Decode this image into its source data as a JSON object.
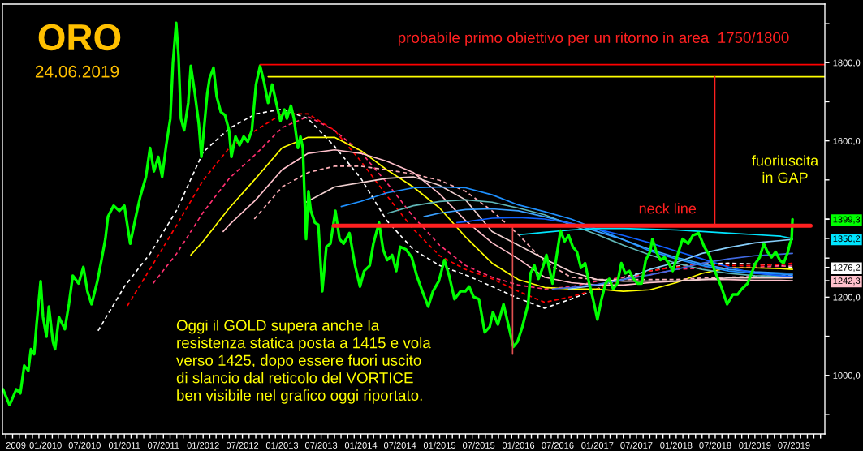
{
  "chart_data": {
    "type": "line",
    "title": "ORO",
    "subtitle": "24.06.2019",
    "annotations": [
      "probabile primo obiettivo per un ritorno in area  1750/1800",
      "fuoriuscita\nin GAP",
      "Oggi il GOLD supera anche la\nresistenza statica posta a 1415 e vola\nverso 1425, dopo essere fuori uscito\ndi slancio dal reticolo del VORTICE\nben visibile nel grafico oggi riportato."
    ],
    "xlim": [
      "2009-06-15",
      "2019-11-21"
    ],
    "ylim": [
      850,
      1950
    ],
    "yticks": [
      {
        "value": 900,
        "label": null
      },
      {
        "value": 1000,
        "label": "1000,0"
      },
      {
        "value": 1100,
        "label": null
      },
      {
        "value": 1200,
        "label": "1200,0"
      },
      {
        "value": 1300,
        "label": null
      },
      {
        "value": 1400,
        "label": null
      },
      {
        "value": 1500,
        "label": null
      },
      {
        "value": 1600,
        "label": "1600,0"
      },
      {
        "value": 1700,
        "label": null
      },
      {
        "value": 1800,
        "label": "1800,0"
      },
      {
        "value": 1900,
        "label": null
      },
      {
        "value": 1399.3,
        "label": "1399,3"
      },
      {
        "value": 1350.2,
        "label": "1350,2"
      },
      {
        "value": 1276.2,
        "label": "1276,2"
      },
      {
        "value": 1242.3,
        "label": "1242,3"
      }
    ],
    "xticks": [
      {
        "value": "2009-07-01",
        "label": "2009"
      },
      {
        "value": "2009-08-01",
        "label": null
      },
      {
        "value": "2009-09-01",
        "label": null
      },
      {
        "value": "2009-10-01",
        "label": null
      },
      {
        "value": "2009-11-01",
        "label": null
      },
      {
        "value": "2009-12-01",
        "label": null
      },
      {
        "value": "2010-01-01",
        "label": "01/2010"
      },
      {
        "value": "2010-02-01",
        "label": null
      },
      {
        "value": "2010-03-01",
        "label": null
      },
      {
        "value": "2010-04-01",
        "label": null
      },
      {
        "value": "2010-05-01",
        "label": null
      },
      {
        "value": "2010-06-01",
        "label": null
      },
      {
        "value": "2010-07-01",
        "label": "07/2010"
      },
      {
        "value": "2010-08-01",
        "label": null
      },
      {
        "value": "2010-09-01",
        "label": null
      },
      {
        "value": "2010-10-01",
        "label": null
      },
      {
        "value": "2010-11-01",
        "label": null
      },
      {
        "value": "2010-12-01",
        "label": null
      },
      {
        "value": "2011-01-01",
        "label": "01/2011"
      },
      {
        "value": "2011-02-01",
        "label": null
      },
      {
        "value": "2011-03-01",
        "label": null
      },
      {
        "value": "2011-04-01",
        "label": null
      },
      {
        "value": "2011-05-01",
        "label": null
      },
      {
        "value": "2011-06-01",
        "label": null
      },
      {
        "value": "2011-07-01",
        "label": "07/2011"
      },
      {
        "value": "2011-08-01",
        "label": null
      },
      {
        "value": "2011-09-01",
        "label": null
      },
      {
        "value": "2011-10-01",
        "label": null
      },
      {
        "value": "2011-11-01",
        "label": null
      },
      {
        "value": "2011-12-01",
        "label": null
      },
      {
        "value": "2012-01-01",
        "label": "01/2012"
      },
      {
        "value": "2012-02-01",
        "label": null
      },
      {
        "value": "2012-03-01",
        "label": null
      },
      {
        "value": "2012-04-01",
        "label": null
      },
      {
        "value": "2012-05-01",
        "label": null
      },
      {
        "value": "2012-06-01",
        "label": null
      },
      {
        "value": "2012-07-01",
        "label": "07/2012"
      },
      {
        "value": "2012-08-01",
        "label": null
      },
      {
        "value": "2012-09-01",
        "label": null
      },
      {
        "value": "2012-10-01",
        "label": null
      },
      {
        "value": "2012-11-01",
        "label": null
      },
      {
        "value": "2012-12-01",
        "label": null
      },
      {
        "value": "2013-01-01",
        "label": "01/2013"
      },
      {
        "value": "2013-02-01",
        "label": null
      },
      {
        "value": "2013-03-01",
        "label": null
      },
      {
        "value": "2013-04-01",
        "label": null
      },
      {
        "value": "2013-05-01",
        "label": null
      },
      {
        "value": "2013-06-01",
        "label": null
      },
      {
        "value": "2013-07-01",
        "label": "07/2013"
      },
      {
        "value": "2013-08-01",
        "label": null
      },
      {
        "value": "2013-09-01",
        "label": null
      },
      {
        "value": "2013-10-01",
        "label": null
      },
      {
        "value": "2013-11-01",
        "label": null
      },
      {
        "value": "2013-12-01",
        "label": null
      },
      {
        "value": "2014-01-01",
        "label": "01/2014"
      },
      {
        "value": "2014-02-01",
        "label": null
      },
      {
        "value": "2014-03-01",
        "label": null
      },
      {
        "value": "2014-04-01",
        "label": null
      },
      {
        "value": "2014-05-01",
        "label": null
      },
      {
        "value": "2014-06-01",
        "label": null
      },
      {
        "value": "2014-07-01",
        "label": "07/2014"
      },
      {
        "value": "2014-08-01",
        "label": null
      },
      {
        "value": "2014-09-01",
        "label": null
      },
      {
        "value": "2014-10-01",
        "label": null
      },
      {
        "value": "2014-11-01",
        "label": null
      },
      {
        "value": "2014-12-01",
        "label": null
      },
      {
        "value": "2015-01-01",
        "label": "01/2015"
      },
      {
        "value": "2015-02-01",
        "label": null
      },
      {
        "value": "2015-03-01",
        "label": null
      },
      {
        "value": "2015-04-01",
        "label": null
      },
      {
        "value": "2015-05-01",
        "label": null
      },
      {
        "value": "2015-06-01",
        "label": null
      },
      {
        "value": "2015-07-01",
        "label": "07/2015"
      },
      {
        "value": "2015-08-01",
        "label": null
      },
      {
        "value": "2015-09-01",
        "label": null
      },
      {
        "value": "2015-10-01",
        "label": null
      },
      {
        "value": "2015-11-01",
        "label": null
      },
      {
        "value": "2015-12-01",
        "label": null
      },
      {
        "value": "2016-01-01",
        "label": "01/2016"
      },
      {
        "value": "2016-02-01",
        "label": null
      },
      {
        "value": "2016-03-01",
        "label": null
      },
      {
        "value": "2016-04-01",
        "label": null
      },
      {
        "value": "2016-05-01",
        "label": null
      },
      {
        "value": "2016-06-01",
        "label": null
      },
      {
        "value": "2016-07-01",
        "label": "07/2016"
      },
      {
        "value": "2016-08-01",
        "label": null
      },
      {
        "value": "2016-09-01",
        "label": null
      },
      {
        "value": "2016-10-01",
        "label": null
      },
      {
        "value": "2016-11-01",
        "label": null
      },
      {
        "value": "2016-12-01",
        "label": null
      },
      {
        "value": "2017-01-01",
        "label": "01/2017"
      },
      {
        "value": "2017-02-01",
        "label": null
      },
      {
        "value": "2017-03-01",
        "label": null
      },
      {
        "value": "2017-04-01",
        "label": null
      },
      {
        "value": "2017-05-01",
        "label": null
      },
      {
        "value": "2017-06-01",
        "label": null
      },
      {
        "value": "2017-07-01",
        "label": "07/2017"
      },
      {
        "value": "2017-08-01",
        "label": null
      },
      {
        "value": "2017-09-01",
        "label": null
      },
      {
        "value": "2017-10-01",
        "label": null
      },
      {
        "value": "2017-11-01",
        "label": null
      },
      {
        "value": "2017-12-01",
        "label": null
      },
      {
        "value": "2018-01-01",
        "label": "01/2018"
      },
      {
        "value": "2018-02-01",
        "label": null
      },
      {
        "value": "2018-03-01",
        "label": null
      },
      {
        "value": "2018-04-01",
        "label": null
      },
      {
        "value": "2018-05-01",
        "label": null
      },
      {
        "value": "2018-06-01",
        "label": null
      },
      {
        "value": "2018-07-01",
        "label": "07/2018"
      },
      {
        "value": "2018-08-01",
        "label": null
      },
      {
        "value": "2018-09-01",
        "label": null
      },
      {
        "value": "2018-10-01",
        "label": null
      },
      {
        "value": "2018-11-01",
        "label": null
      },
      {
        "value": "2018-12-01",
        "label": null
      },
      {
        "value": "2019-01-01",
        "label": "01/2019"
      },
      {
        "value": "2019-02-01",
        "label": null
      },
      {
        "value": "2019-03-01",
        "label": null
      },
      {
        "value": "2019-04-01",
        "label": null
      },
      {
        "value": "2019-05-01",
        "label": null
      },
      {
        "value": "2019-06-01",
        "label": null
      },
      {
        "value": "2019-07-01",
        "label": "07/2019"
      },
      {
        "value": "2019-08-01",
        "label": null
      },
      {
        "value": "2019-09-01",
        "label": null
      },
      {
        "value": "2019-10-01",
        "label": null
      },
      {
        "value": "2019-11-01",
        "label": null
      }
    ],
    "series": [
      {
        "color": "#ffffff",
        "line_style": "dashed",
        "x": [
          "2010-09-01",
          "2011-01-01",
          "2011-05-01",
          "2011-09-01",
          "2012-01-01",
          "2012-05-01",
          "2012-09-01",
          "2013-01-01",
          "2013-05-01",
          "2013-09-01",
          "2014-01-01",
          "2014-05-01",
          "2014-09-01",
          "2015-01-01",
          "2015-05-01",
          "2015-09-01",
          "2016-01-01",
          "2016-05-01",
          "2016-09-01",
          "2017-01-01",
          "2017-05-01",
          "2017-09-01",
          "2018-01-01",
          "2018-05-01",
          "2018-09-01",
          "2019-01-01",
          "2019-05-01",
          "2019-06-24"
        ],
        "values": [
          1114,
          1227,
          1312,
          1423,
          1571,
          1632,
          1669,
          1681,
          1657,
          1586,
          1504,
          1396,
          1322,
          1281,
          1257,
          1227,
          1197,
          1172,
          1195,
          1221,
          1251,
          1267,
          1279,
          1285,
          1287,
          1285,
          1281,
          1276.2
        ]
      },
      {
        "color": "#ff0000",
        "line_style": "dashed",
        "x": [
          "2011-01-15",
          "2011-05-01",
          "2011-09-01",
          "2012-01-01",
          "2012-05-01",
          "2012-09-01",
          "2013-01-01",
          "2013-05-01",
          "2013-09-01",
          "2014-01-01",
          "2014-05-01",
          "2014-09-01",
          "2015-01-01",
          "2015-05-01",
          "2015-09-01",
          "2016-01-01",
          "2016-05-01",
          "2016-09-01",
          "2017-01-01",
          "2017-05-01",
          "2017-09-01",
          "2018-01-01",
          "2018-05-01",
          "2018-09-01",
          "2019-01-01",
          "2019-05-01",
          "2019-06-24"
        ],
        "values": [
          1178,
          1273,
          1385,
          1499,
          1582,
          1627,
          1669,
          1669,
          1627,
          1548,
          1460,
          1374,
          1306,
          1271,
          1247,
          1215,
          1187,
          1201,
          1221,
          1245,
          1267,
          1277,
          1285,
          1281,
          1281,
          1283,
          1287
        ]
      },
      {
        "color": "#ff3070",
        "line_style": "dashed",
        "x": [
          "2011-05-14",
          "2011-09-01",
          "2012-01-01",
          "2012-05-01",
          "2012-09-01",
          "2013-01-01",
          "2013-05-01",
          "2013-09-01",
          "2014-01-01",
          "2014-05-01",
          "2014-09-01",
          "2015-01-01",
          "2015-05-01",
          "2015-09-01",
          "2016-01-01",
          "2016-05-01",
          "2016-09-01",
          "2017-01-01",
          "2017-05-01",
          "2017-09-01",
          "2018-01-01",
          "2018-05-01",
          "2018-09-01",
          "2019-01-01",
          "2019-05-01",
          "2019-06-24"
        ],
        "values": [
          1235,
          1312,
          1417,
          1504,
          1566,
          1634,
          1662,
          1627,
          1571,
          1493,
          1406,
          1333,
          1281,
          1251,
          1231,
          1221,
          1227,
          1241,
          1251,
          1257,
          1271,
          1275,
          1275,
          1277,
          1279,
          1281
        ]
      },
      {
        "color": "#ffff00",
        "line_style": "solid",
        "x": [
          "2011-11-05",
          "2012-01-01",
          "2012-05-01",
          "2012-09-01",
          "2013-01-01",
          "2013-05-01",
          "2013-09-01",
          "2014-01-01",
          "2014-05-01",
          "2014-09-01",
          "2015-01-01",
          "2015-05-01",
          "2015-09-01",
          "2016-01-01",
          "2016-05-01",
          "2016-09-01",
          "2017-01-01",
          "2017-05-01",
          "2017-09-01",
          "2018-01-01",
          "2018-05-01",
          "2018-09-01",
          "2019-01-01",
          "2019-05-01",
          "2019-06-24"
        ],
        "values": [
          1308,
          1343,
          1428,
          1504,
          1582,
          1609,
          1609,
          1575,
          1526,
          1482,
          1428,
          1354,
          1287,
          1245,
          1225,
          1221,
          1221,
          1215,
          1219,
          1237,
          1261,
          1275,
          1275,
          1273,
          1271
        ]
      },
      {
        "color": "#ffc0cb",
        "line_style": "solid",
        "x": [
          "2012-04-03",
          "2012-05-01",
          "2012-09-01",
          "2013-01-01",
          "2013-05-01",
          "2013-09-01",
          "2014-01-01",
          "2014-05-01",
          "2014-09-01",
          "2015-01-01",
          "2015-05-01",
          "2015-09-01",
          "2016-01-01",
          "2016-05-01",
          "2016-09-01",
          "2017-01-01",
          "2017-05-01",
          "2017-09-01",
          "2018-01-01",
          "2018-05-01",
          "2018-09-01",
          "2019-01-01",
          "2019-05-01",
          "2019-06-24"
        ],
        "values": [
          1368,
          1385,
          1449,
          1526,
          1568,
          1577,
          1568,
          1548,
          1519,
          1464,
          1396,
          1339,
          1298,
          1251,
          1237,
          1231,
          1231,
          1237,
          1241,
          1245,
          1245,
          1243,
          1243,
          1242.3
        ]
      },
      {
        "color": "#ffb0b8",
        "line_style": "dashed",
        "x": [
          "2012-08-25",
          "2013-01-01",
          "2013-05-01",
          "2013-09-01",
          "2014-01-01",
          "2014-05-01",
          "2014-09-01",
          "2015-01-01",
          "2015-05-01",
          "2015-09-01",
          "2016-01-01",
          "2016-05-01",
          "2016-09-01",
          "2017-01-01",
          "2017-05-01",
          "2017-09-01",
          "2018-01-01",
          "2018-05-01",
          "2018-09-01",
          "2019-01-01",
          "2019-05-01",
          "2019-06-24"
        ],
        "values": [
          1400,
          1482,
          1519,
          1535,
          1535,
          1526,
          1515,
          1499,
          1471,
          1421,
          1360,
          1291,
          1251,
          1245,
          1245,
          1245,
          1245,
          1249,
          1251,
          1253,
          1255,
          1255
        ]
      },
      {
        "color": "#f0d0d0",
        "line_style": "solid",
        "x": [
          "2013-04-22",
          "2013-09-01",
          "2014-01-01",
          "2014-05-01",
          "2014-09-01",
          "2015-01-01",
          "2015-05-01",
          "2015-09-01",
          "2016-01-01",
          "2016-05-01",
          "2016-09-01",
          "2017-01-01",
          "2017-05-01",
          "2017-09-01",
          "2018-01-01",
          "2018-05-01",
          "2018-09-01",
          "2019-01-01",
          "2019-05-01",
          "2019-06-24"
        ],
        "values": [
          1443,
          1482,
          1493,
          1504,
          1508,
          1486,
          1449,
          1368,
          1333,
          1298,
          1265,
          1245,
          1241,
          1241,
          1241,
          1245,
          1249,
          1249,
          1249,
          1249
        ]
      },
      {
        "color": "#1e90ff",
        "line_style": "solid",
        "x": [
          "2013-10-02",
          "2014-01-01",
          "2014-05-01",
          "2014-09-01",
          "2015-01-01",
          "2015-05-01",
          "2015-09-01",
          "2016-01-01",
          "2016-05-01",
          "2016-09-01",
          "2017-01-01",
          "2017-05-01",
          "2017-09-01",
          "2018-01-01",
          "2018-05-01",
          "2018-09-01",
          "2019-01-01",
          "2019-05-01",
          "2019-06-24"
        ],
        "values": [
          1432,
          1445,
          1467,
          1480,
          1482,
          1480,
          1462,
          1436,
          1419,
          1400,
          1374,
          1347,
          1318,
          1298,
          1281,
          1267,
          1261,
          1259,
          1257
        ]
      },
      {
        "color": "#60b8b8",
        "line_style": "solid",
        "x": [
          "2014-05-07",
          "2014-09-01",
          "2015-01-01",
          "2015-05-01",
          "2015-09-01",
          "2016-01-01",
          "2016-05-01",
          "2016-09-01",
          "2017-01-01",
          "2017-05-01",
          "2017-09-01",
          "2018-01-01",
          "2018-05-01",
          "2018-09-01",
          "2019-01-01",
          "2019-05-01",
          "2019-06-24"
        ],
        "values": [
          1415,
          1434,
          1445,
          1449,
          1443,
          1428,
          1411,
          1385,
          1360,
          1333,
          1308,
          1287,
          1271,
          1261,
          1255,
          1254,
          1253
        ]
      },
      {
        "color": "#3aa0ff",
        "line_style": "solid",
        "x": [
          "2014-10-20",
          "2015-01-01",
          "2015-05-01",
          "2015-09-01",
          "2016-01-01",
          "2016-05-01",
          "2016-09-01",
          "2017-01-01",
          "2017-05-01",
          "2017-09-01",
          "2018-01-01",
          "2018-05-01",
          "2018-09-01",
          "2019-01-01",
          "2019-05-01",
          "2019-06-24"
        ],
        "values": [
          1406,
          1415,
          1424,
          1426,
          1421,
          1406,
          1389,
          1368,
          1347,
          1322,
          1302,
          1285,
          1271,
          1265,
          1262,
          1261
        ]
      },
      {
        "color": "#1060ff",
        "line_style": "solid",
        "x": [
          "2015-03-22",
          "2015-05-01",
          "2015-09-01",
          "2016-01-01",
          "2016-05-01",
          "2016-09-01",
          "2017-01-01",
          "2017-05-01",
          "2017-09-01",
          "2018-01-01",
          "2018-05-01",
          "2018-09-01",
          "2019-01-01",
          "2019-05-01",
          "2019-06-24"
        ],
        "values": [
          1391,
          1393,
          1402,
          1404,
          1400,
          1389,
          1374,
          1358,
          1339,
          1318,
          1298,
          1277,
          1261,
          1255,
          1253
        ]
      },
      {
        "color": "#00e5ff",
        "line_style": "solid",
        "x": [
          "2016-01-08",
          "2016-05-01",
          "2016-09-01",
          "2017-01-01",
          "2017-05-01",
          "2017-09-01",
          "2018-01-01",
          "2018-05-01",
          "2018-09-01",
          "2019-01-01",
          "2019-05-01",
          "2019-06-24"
        ],
        "values": [
          1360,
          1366,
          1372,
          1376,
          1376,
          1374,
          1372,
          1368,
          1364,
          1360,
          1356,
          1350.2
        ]
      },
      {
        "color": "#87cefa",
        "line_style": "solid",
        "x": [
          "2016-08-21",
          "2017-01-01",
          "2017-05-01",
          "2017-09-01",
          "2018-01-01",
          "2018-05-01",
          "2018-09-01",
          "2019-01-01",
          "2019-05-01",
          "2019-06-24"
        ],
        "values": [
          1221,
          1231,
          1245,
          1271,
          1289,
          1312,
          1327,
          1339,
          1345,
          1348
        ]
      },
      {
        "color": "#4169e1",
        "line_style": "solid",
        "x": [
          "2016-06-07",
          "2016-09-01",
          "2017-01-01",
          "2017-05-01",
          "2017-09-01",
          "2018-01-01",
          "2018-05-01",
          "2018-09-01",
          "2019-01-01",
          "2019-05-01",
          "2019-06-24"
        ],
        "values": [
          1221,
          1225,
          1233,
          1245,
          1257,
          1271,
          1287,
          1298,
          1306,
          1310,
          1312
        ]
      },
      {
        "color": "#00ff00",
        "line_style": "solid",
        "x": [
          "2009-06-18",
          "2009-07-18",
          "2009-08-18",
          "2009-09-06",
          "2009-09-24",
          "2009-10-13",
          "2009-10-25",
          "2009-11-09",
          "2009-11-20",
          "2009-12-09",
          "2009-12-20",
          "2010-01-05",
          "2010-01-16",
          "2010-02-04",
          "2010-02-14",
          "2010-03-04",
          "2010-03-31",
          "2010-04-19",
          "2010-05-07",
          "2010-06-03",
          "2010-06-25",
          "2010-07-14",
          "2010-08-02",
          "2010-08-29",
          "2010-09-17",
          "2010-10-05",
          "2010-10-17",
          "2010-11-12",
          "2010-12-09",
          "2011-01-01",
          "2011-01-28",
          "2011-02-23",
          "2011-03-15",
          "2011-04-11",
          "2011-04-30",
          "2011-05-18",
          "2011-06-07",
          "2011-06-25",
          "2011-07-14",
          "2011-08-02",
          "2011-08-14",
          "2011-08-29",
          "2011-09-09",
          "2011-09-20",
          "2011-10-05",
          "2011-10-24",
          "2011-11-05",
          "2011-11-24",
          "2011-12-12",
          "2011-12-24",
          "2012-01-20",
          "2012-01-31",
          "2012-02-18",
          "2012-03-04",
          "2012-03-23",
          "2012-04-11",
          "2012-04-30",
          "2012-05-11",
          "2012-05-30",
          "2012-06-18",
          "2012-07-07",
          "2012-07-26",
          "2012-08-14",
          "2012-09-02",
          "2012-09-21",
          "2012-10-09",
          "2012-10-28",
          "2012-11-16",
          "2012-12-05",
          "2012-12-24",
          "2013-01-12",
          "2013-01-23",
          "2013-02-11",
          "2013-02-25",
          "2013-03-15",
          "2013-03-27",
          "2013-04-07",
          "2013-04-22",
          "2013-05-03",
          "2013-05-14",
          "2013-06-02",
          "2013-06-18",
          "2013-07-06",
          "2013-07-25",
          "2013-08-13",
          "2013-09-05",
          "2013-09-24",
          "2013-10-13",
          "2013-11-09",
          "2013-12-05",
          "2013-12-28",
          "2014-01-16",
          "2014-02-11",
          "2014-02-28",
          "2014-03-26",
          "2014-04-14",
          "2014-05-03",
          "2014-05-26",
          "2014-06-14",
          "2014-07-02",
          "2014-07-29",
          "2014-08-25",
          "2014-09-17",
          "2014-10-13",
          "2014-11-09",
          "2014-12-01",
          "2014-12-28",
          "2015-01-23",
          "2015-02-14",
          "2015-03-11",
          "2015-04-07",
          "2015-04-30",
          "2015-05-18",
          "2015-06-07",
          "2015-07-02",
          "2015-07-29",
          "2015-08-21",
          "2015-09-05",
          "2015-09-28",
          "2015-10-24",
          "2015-11-12",
          "2015-12-09",
          "2015-12-28",
          "2016-01-19",
          "2016-02-15",
          "2016-02-26",
          "2016-03-15",
          "2016-04-03",
          "2016-04-22",
          "2016-05-10",
          "2016-06-07",
          "2016-06-25",
          "2016-07-14",
          "2016-08-02",
          "2016-08-21",
          "2016-09-09",
          "2016-09-28",
          "2016-10-17",
          "2016-11-05",
          "2016-11-24",
          "2016-12-12",
          "2017-01-01",
          "2017-01-20",
          "2017-02-08",
          "2017-02-25",
          "2017-03-15",
          "2017-04-03",
          "2017-04-22",
          "2017-05-10",
          "2017-05-29",
          "2017-06-17",
          "2017-07-06",
          "2017-07-25",
          "2017-08-13",
          "2017-09-02",
          "2017-09-13",
          "2017-10-01",
          "2017-10-20",
          "2017-11-08",
          "2017-11-27",
          "2017-12-16",
          "2018-01-04",
          "2018-01-31",
          "2018-02-26",
          "2018-03-19",
          "2018-04-15",
          "2018-05-11",
          "2018-06-03",
          "2018-06-29",
          "2018-07-29",
          "2018-08-25",
          "2018-09-21",
          "2018-10-13",
          "2018-11-01",
          "2018-11-28",
          "2018-12-16",
          "2019-01-04",
          "2019-01-23",
          "2019-02-11",
          "2019-02-28",
          "2019-03-19",
          "2019-04-07",
          "2019-04-26",
          "2019-05-14",
          "2019-06-03",
          "2019-06-12",
          "2019-06-20",
          "2019-06-24"
        ],
        "values": [
          964,
          924,
          964,
          954,
          1025,
          1012,
          1067,
          1054,
          1130,
          1241,
          1149,
          1099,
          1176,
          1086,
          1067,
          1149,
          1118,
          1182,
          1255,
          1235,
          1277,
          1215,
          1182,
          1241,
          1295,
          1349,
          1406,
          1434,
          1421,
          1434,
          1337,
          1406,
          1456,
          1508,
          1582,
          1522,
          1559,
          1508,
          1589,
          1657,
          1799,
          1902,
          1816,
          1657,
          1627,
          1697,
          1792,
          1720,
          1643,
          1559,
          1720,
          1760,
          1787,
          1713,
          1674,
          1666,
          1627,
          1559,
          1611,
          1589,
          1611,
          1598,
          1627,
          1744,
          1792,
          1751,
          1697,
          1744,
          1697,
          1651,
          1680,
          1657,
          1690,
          1657,
          1582,
          1611,
          1582,
          1349,
          1471,
          1421,
          1391,
          1385,
          1215,
          1329,
          1337,
          1421,
          1349,
          1337,
          1364,
          1281,
          1227,
          1267,
          1281,
          1337,
          1391,
          1322,
          1295,
          1308,
          1267,
          1329,
          1322,
          1302,
          1255,
          1215,
          1176,
          1215,
          1241,
          1295,
          1255,
          1195,
          1215,
          1215,
          1227,
          1201,
          1195,
          1110,
          1124,
          1162,
          1130,
          1182,
          1137,
          1073,
          1086,
          1124,
          1182,
          1261,
          1281,
          1247,
          1275,
          1308,
          1235,
          1302,
          1370,
          1343,
          1358,
          1329,
          1316,
          1275,
          1287,
          1235,
          1195,
          1143,
          1195,
          1235,
          1247,
          1221,
          1235,
          1287,
          1261,
          1267,
          1247,
          1235,
          1235,
          1295,
          1316,
          1349,
          1316,
          1295,
          1302,
          1287,
          1267,
          1302,
          1349,
          1337,
          1358,
          1364,
          1329,
          1308,
          1267,
          1227,
          1182,
          1207,
          1207,
          1221,
          1235,
          1261,
          1287,
          1302,
          1337,
          1316,
          1302,
          1316,
          1295,
          1287,
          1316,
          1337,
          1348,
          1399.3
        ]
      },
      {
        "color": "#ff0000",
        "line_style": "solid",
        "x": [
          "2012-09-21",
          "2019-11-21"
        ],
        "values": [
          1795,
          1795
        ]
      },
      {
        "color": "#ffff00",
        "line_style": "solid",
        "x": [
          "2012-10-28",
          "2019-11-21"
        ],
        "values": [
          1764,
          1764
        ]
      },
      {
        "color": "#e05050",
        "line_style": "solid",
        "x": [
          "2015-12-05",
          "2015-12-05"
        ],
        "values": [
          1383,
          1054
        ]
      },
      {
        "color": "#ff2020",
        "line_style": "solid",
        "x": [
          "2018-06-29",
          "2018-06-29"
        ],
        "values": [
          1383,
          1764
        ]
      },
      {
        "name": "neck line",
        "color": "#ff2020",
        "line_style": "solid",
        "x": [
          "2013-08-28",
          "2019-09-16"
        ],
        "values": [
          1383,
          1383
        ]
      }
    ]
  }
}
